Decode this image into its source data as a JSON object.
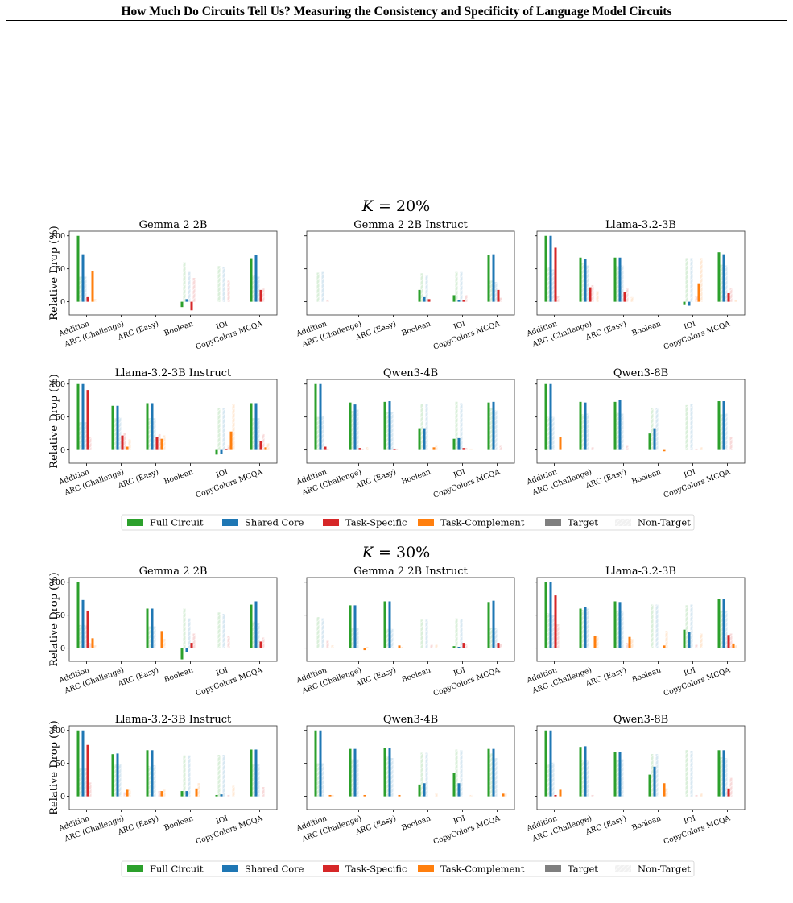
{
  "header": {
    "title": "How Much Do Circuits Tell Us? Measuring the Consistency and Specificity of Language Model Circuits"
  },
  "chart_data": {
    "type": "bar",
    "categories": [
      "Addition",
      "ARC (Challenge)",
      "ARC (Easy)",
      "Boolean",
      "IOI",
      "CopyColors MCQA"
    ],
    "ylabel": "Relative Drop (%)",
    "yticks": [
      0,
      50,
      100
    ],
    "ylim": [
      -20,
      107
    ],
    "legend": {
      "placement": "bottom-center",
      "entries": [
        {
          "label": "Full Circuit",
          "color": "#2ca02c",
          "hatch": false
        },
        {
          "label": "Shared Core",
          "color": "#1f77b4",
          "hatch": false
        },
        {
          "label": "Task-Specific",
          "color": "#d62728",
          "hatch": false
        },
        {
          "label": "Task-Complement",
          "color": "#ff7f0e",
          "hatch": false
        },
        {
          "label": "Target",
          "color": "#7f7f7f",
          "hatch": false
        },
        {
          "label": "Non-Target",
          "color": "#cfcfcf",
          "hatch": true
        }
      ]
    },
    "series_order": [
      "Full Circuit (Target)",
      "Full Circuit (Non-Target)",
      "Shared Core (Target)",
      "Shared Core (Non-Target)",
      "Task-Specific (Target)",
      "Task-Specific (Non-Target)",
      "Task-Complement (Target)",
      "Task-Complement (Non-Target)"
    ],
    "panels": [
      {
        "title": "K = 20%",
        "subplots": [
          {
            "title": "Gemma 2 2B",
            "values": [
              [
                100,
                38,
                72,
                38,
                7,
                0,
                46,
                4
              ],
              [
                0,
                0,
                0,
                0,
                0,
                0,
                0,
                0
              ],
              [
                0,
                0,
                0,
                0,
                0,
                0,
                0,
                0
              ],
              [
                -8,
                60,
                4,
                45,
                -13,
                36,
                0,
                0
              ],
              [
                0,
                54,
                0,
                52,
                0,
                32,
                0,
                0
              ],
              [
                66,
                40,
                71,
                38,
                18,
                20,
                0,
                0
              ]
            ]
          },
          {
            "title": "Gemma 2 2B Instruct",
            "values": [
              [
                0,
                44,
                0,
                45,
                0,
                2,
                0,
                0
              ],
              [
                0,
                0,
                0,
                0,
                0,
                0,
                0,
                0
              ],
              [
                0,
                0,
                0,
                0,
                0,
                0,
                0,
                0
              ],
              [
                18,
                43,
                7,
                41,
                4,
                0,
                0,
                0
              ],
              [
                10,
                45,
                2,
                45,
                3,
                10,
                0,
                0
              ],
              [
                71,
                32,
                72,
                30,
                18,
                6,
                0,
                0
              ]
            ]
          },
          {
            "title": "Llama-3.2-3B",
            "values": [
              [
                100,
                53,
                100,
                49,
                82,
                8,
                0,
                0
              ],
              [
                67,
                58,
                65,
                55,
                22,
                25,
                0,
                16
              ],
              [
                67,
                54,
                67,
                55,
                15,
                20,
                0,
                7
              ],
              [
                0,
                0,
                0,
                0,
                0,
                0,
                0,
                0
              ],
              [
                -5,
                66,
                -6,
                66,
                0,
                8,
                28,
                66
              ],
              [
                75,
                56,
                72,
                55,
                13,
                20,
                0,
                2
              ]
            ]
          },
          {
            "title": "Llama-3.2-3B Instruct",
            "values": [
              [
                100,
                42,
                100,
                42,
                91,
                20,
                0,
                0
              ],
              [
                67,
                48,
                67,
                49,
                22,
                26,
                5,
                16
              ],
              [
                71,
                48,
                71,
                48,
                20,
                24,
                17,
                22
              ],
              [
                0,
                0,
                0,
                0,
                0,
                0,
                0,
                0
              ],
              [
                -7,
                64,
                -6,
                64,
                2,
                6,
                28,
                70
              ],
              [
                71,
                48,
                71,
                48,
                14,
                24,
                4,
                10
              ]
            ]
          },
          {
            "title": "Qwen3-4B",
            "values": [
              [
                100,
                50,
                100,
                52,
                5,
                2,
                0,
                0
              ],
              [
                72,
                59,
                69,
                61,
                3,
                2,
                0,
                4
              ],
              [
                73,
                57,
                74,
                58,
                2,
                2,
                0,
                0
              ],
              [
                33,
                70,
                33,
                70,
                0,
                0,
                4,
                6
              ],
              [
                17,
                73,
                18,
                71,
                3,
                3,
                0,
                2
              ],
              [
                72,
                64,
                73,
                60,
                0,
                6,
                0,
                0
              ]
            ]
          },
          {
            "title": "Qwen3-8B",
            "values": [
              [
                100,
                50,
                100,
                50,
                0,
                0,
                20,
                0
              ],
              [
                73,
                54,
                72,
                55,
                0,
                4,
                0,
                0
              ],
              [
                73,
                56,
                76,
                55,
                0,
                6,
                0,
                0
              ],
              [
                25,
                64,
                33,
                64,
                0,
                0,
                -2,
                0
              ],
              [
                0,
                68,
                0,
                70,
                0,
                2,
                0,
                4
              ],
              [
                74,
                54,
                74,
                55,
                0,
                20,
                0,
                0
              ]
            ]
          }
        ]
      },
      {
        "title": "K = 30%",
        "subplots": [
          {
            "title": "Gemma 2 2B",
            "values": [
              [
                100,
                35,
                73,
                35,
                57,
                8,
                15,
                4
              ],
              [
                0,
                0,
                0,
                0,
                0,
                0,
                0,
                0
              ],
              [
                60,
                33,
                60,
                33,
                0,
                0,
                26,
                14
              ],
              [
                -17,
                60,
                -6,
                45,
                8,
                22,
                0,
                0
              ],
              [
                0,
                54,
                0,
                52,
                0,
                18,
                0,
                0
              ],
              [
                66,
                40,
                71,
                37,
                10,
                16,
                0,
                0
              ]
            ]
          },
          {
            "title": "Gemma 2 2B Instruct",
            "values": [
              [
                0,
                47,
                0,
                45,
                0,
                11,
                0,
                4
              ],
              [
                65,
                30,
                65,
                30,
                0,
                0,
                -3,
                2
              ],
              [
                71,
                29,
                71,
                29,
                0,
                0,
                4,
                2
              ],
              [
                0,
                43,
                0,
                43,
                0,
                5,
                0,
                5
              ],
              [
                3,
                45,
                2,
                44,
                8,
                6,
                0,
                0
              ],
              [
                70,
                30,
                72,
                30,
                8,
                6,
                0,
                0
              ]
            ]
          },
          {
            "title": "Llama-3.2-3B",
            "values": [
              [
                100,
                53,
                100,
                50,
                80,
                36,
                0,
                0
              ],
              [
                60,
                58,
                62,
                60,
                0,
                0,
                18,
                18
              ],
              [
                71,
                57,
                70,
                57,
                0,
                8,
                17,
                14
              ],
              [
                0,
                66,
                0,
                66,
                0,
                0,
                4,
                26
              ],
              [
                28,
                65,
                25,
                66,
                0,
                5,
                0,
                22
              ],
              [
                75,
                57,
                75,
                57,
                20,
                22,
                7,
                4
              ]
            ]
          },
          {
            "title": "Llama-3.2-3B Instruct",
            "values": [
              [
                100,
                42,
                100,
                42,
                78,
                21,
                0,
                0
              ],
              [
                64,
                48,
                65,
                49,
                0,
                6,
                10,
                10
              ],
              [
                70,
                46,
                70,
                47,
                0,
                8,
                8,
                10
              ],
              [
                8,
                62,
                8,
                62,
                0,
                0,
                12,
                20
              ],
              [
                2,
                63,
                3,
                63,
                0,
                2,
                0,
                16
              ],
              [
                71,
                48,
                71,
                48,
                0,
                14,
                0,
                0
              ]
            ]
          },
          {
            "title": "Qwen3-4B",
            "values": [
              [
                100,
                50,
                100,
                50,
                0,
                0,
                2,
                2
              ],
              [
                72,
                56,
                72,
                56,
                0,
                0,
                2,
                0
              ],
              [
                74,
                61,
                74,
                58,
                0,
                0,
                2,
                0
              ],
              [
                18,
                66,
                20,
                66,
                0,
                0,
                0,
                4
              ],
              [
                35,
                71,
                20,
                70,
                0,
                0,
                0,
                2
              ],
              [
                72,
                65,
                72,
                58,
                0,
                0,
                4,
                4
              ]
            ]
          },
          {
            "title": "Qwen3-8B",
            "values": [
              [
                100,
                48,
                100,
                51,
                2,
                0,
                10,
                0
              ],
              [
                75,
                54,
                76,
                54,
                0,
                2,
                0,
                0
              ],
              [
                67,
                55,
                67,
                56,
                0,
                0,
                0,
                0
              ],
              [
                33,
                64,
                45,
                64,
                0,
                0,
                20,
                12
              ],
              [
                0,
                70,
                0,
                69,
                0,
                2,
                0,
                4
              ],
              [
                70,
                59,
                70,
                58,
                12,
                28,
                0,
                0
              ]
            ]
          }
        ]
      }
    ]
  }
}
